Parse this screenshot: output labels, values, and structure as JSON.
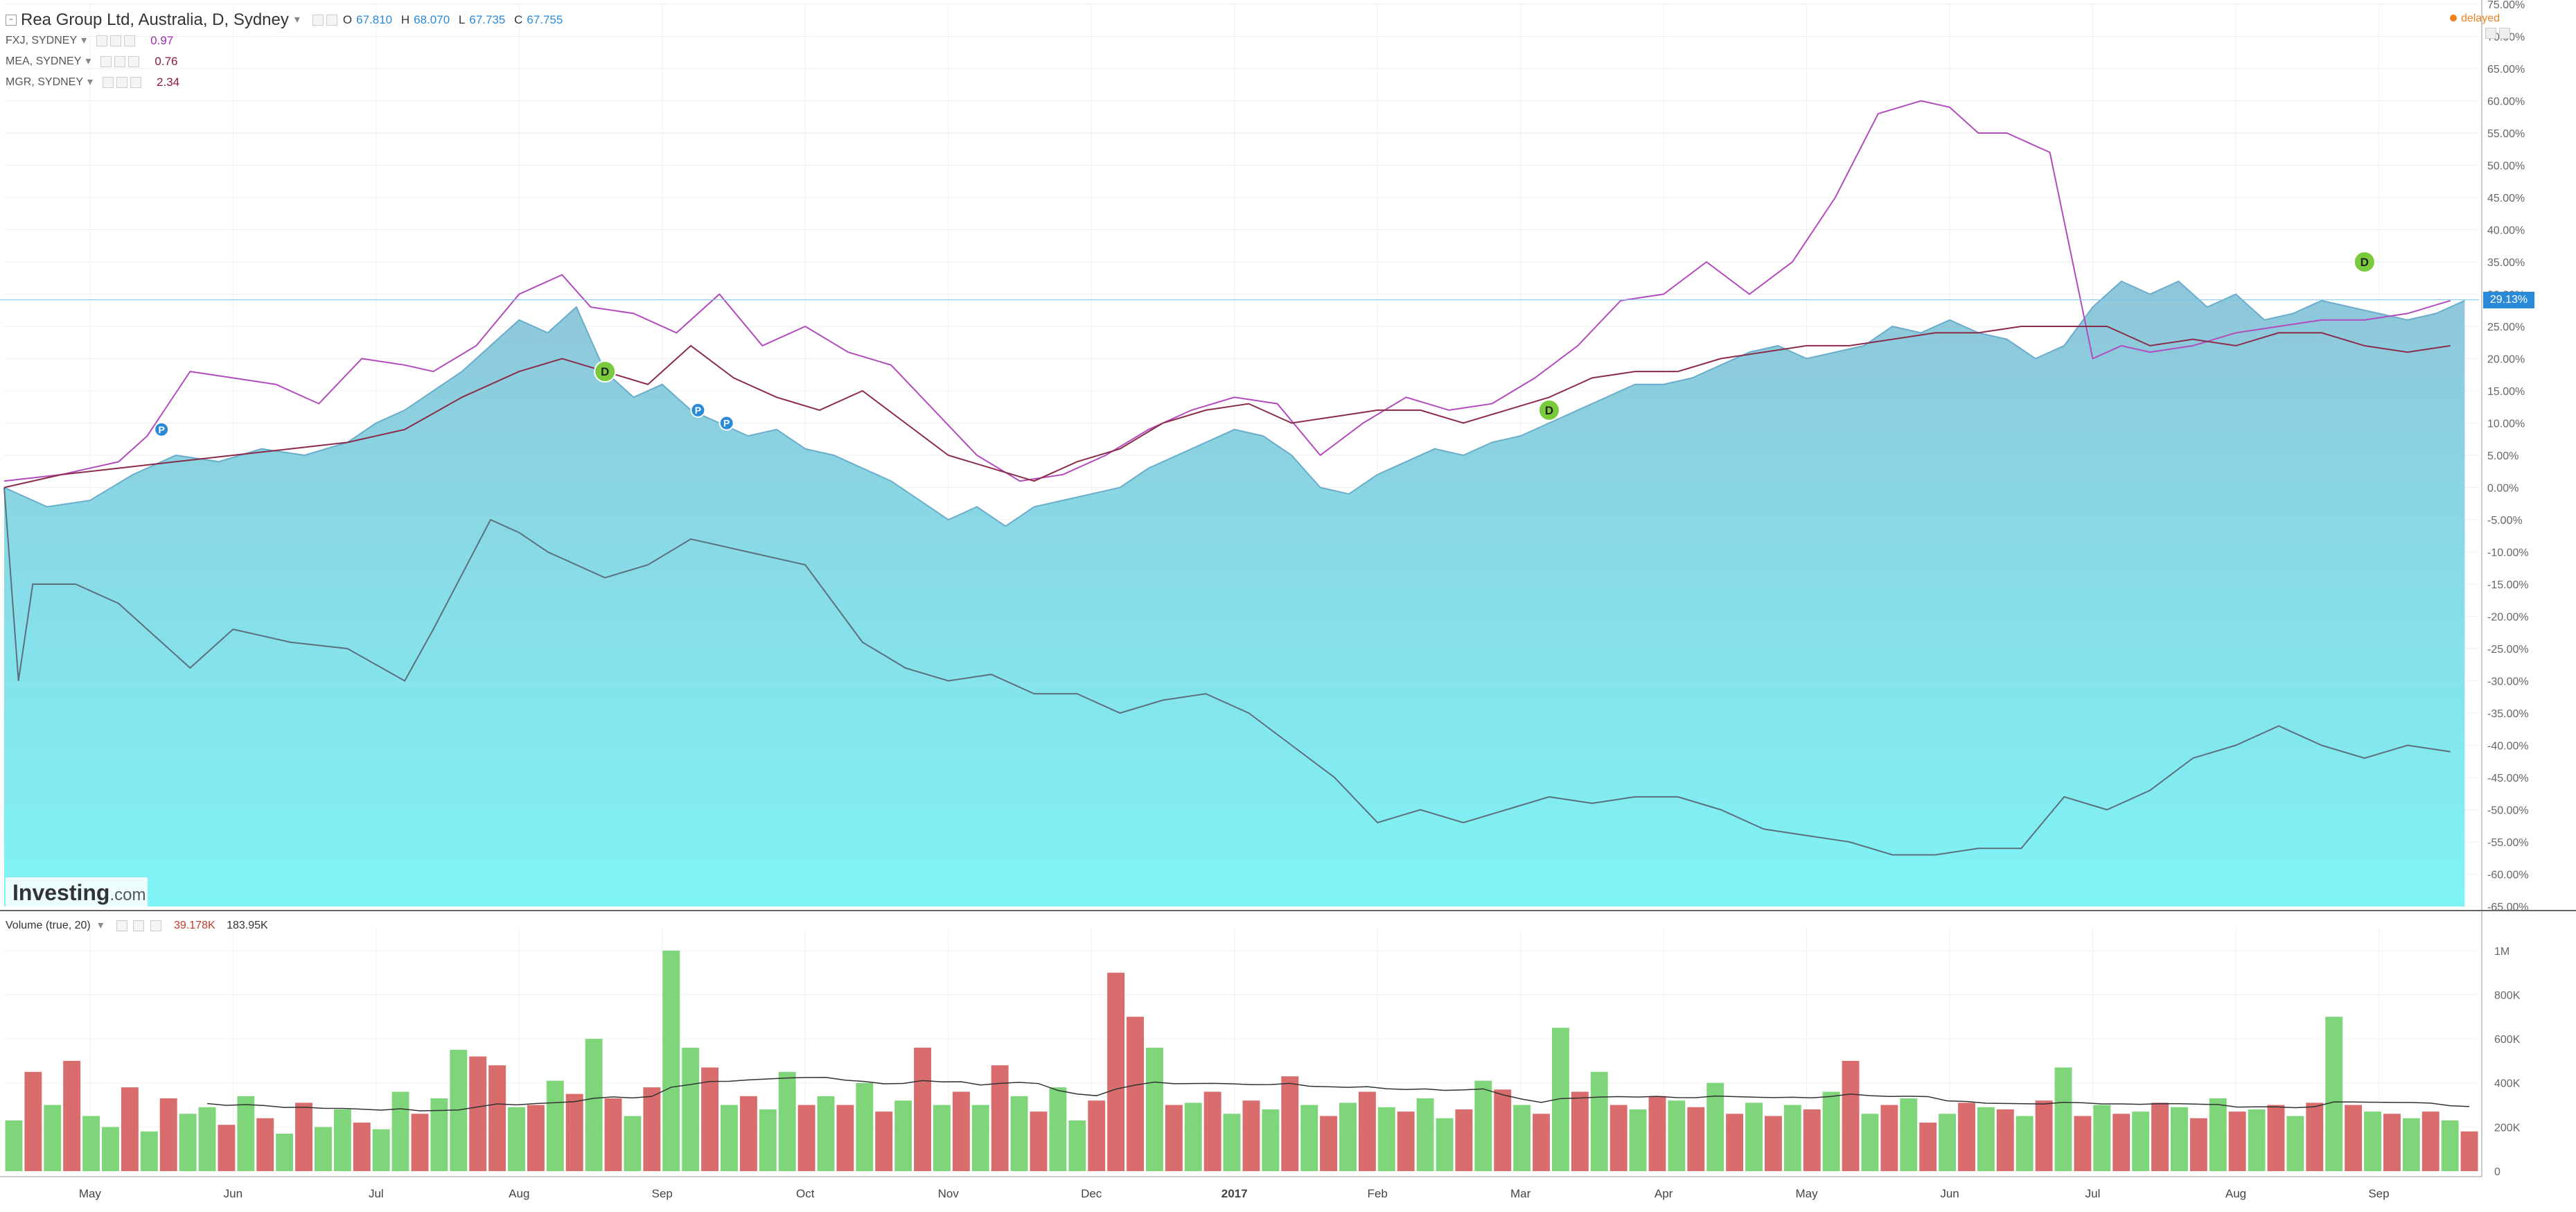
{
  "header": {
    "title": "Rea Group Ltd, Australia, D, Sydney",
    "ohlc": [
      {
        "key": "O",
        "value": "67.810"
      },
      {
        "key": "H",
        "value": "68.070"
      },
      {
        "key": "L",
        "value": "67.735"
      },
      {
        "key": "C",
        "value": "67.755"
      }
    ],
    "status": "delayed",
    "status_color": "#f08020"
  },
  "comparisons": [
    {
      "label": "FXJ, SYDNEY",
      "value": "0.97",
      "color": "#9b2fae"
    },
    {
      "label": "MEA, SYDNEY",
      "value": "0.76",
      "color": "#8b1a3a"
    },
    {
      "label": "MGR, SYDNEY",
      "value": "2.34",
      "color": "#8b1a3a"
    }
  ],
  "watermark": {
    "brand": "Investing",
    "suffix": ".com"
  },
  "volume_legend": {
    "label": "Volume (true, 20)",
    "value1": "39.178K",
    "value2": "183.95K"
  },
  "current_tag": "29.13%",
  "colors": {
    "area_top": "#8fc6d9",
    "area_bottom": "#7ff4f6",
    "area_line": "#6aaccc",
    "fxj": "#b24bbb",
    "mea": "#8b2b4a",
    "mgr": "#5c6f7d",
    "vol_up": "#7fd67a",
    "vol_down": "#d96c6c",
    "ma": "#333333",
    "event_p": "#2a8ad8",
    "event_d": "#7acb3c",
    "tag": "#2a8ad8"
  },
  "chart_data": [
    {
      "type": "area",
      "title": "Rea Group Ltd, Australia, D, Sydney",
      "y_unit": "%",
      "ylim": [
        -65,
        75
      ],
      "y_ticks": [
        "75.00%",
        "70.00%",
        "65.00%",
        "60.00%",
        "55.00%",
        "50.00%",
        "45.00%",
        "40.00%",
        "35.00%",
        "30.00%",
        "25.00%",
        "20.00%",
        "15.00%",
        "10.00%",
        "5.00%",
        "0.00%",
        "-5.00%",
        "-10.00%",
        "-15.00%",
        "-20.00%",
        "-25.00%",
        "-30.00%",
        "-35.00%",
        "-40.00%",
        "-45.00%",
        "-50.00%",
        "-55.00%",
        "-60.00%",
        "-65.00%"
      ],
      "x_ticks": [
        "May",
        "Jun",
        "Jul",
        "Aug",
        "Sep",
        "Oct",
        "Nov",
        "Dec",
        "2017",
        "Feb",
        "Mar",
        "Apr",
        "May",
        "Jun",
        "Jul",
        "Aug",
        "Sep"
      ],
      "x_tick_months": [
        1,
        2,
        3,
        4,
        5,
        6,
        7,
        8,
        9,
        10,
        11,
        12,
        13,
        14,
        15,
        16,
        17
      ],
      "xlim": [
        0,
        17.3
      ],
      "grid": true,
      "series": [
        {
          "name": "Rea Group Ltd",
          "kind": "area",
          "x": [
            0,
            0.3,
            0.6,
            0.9,
            1.2,
            1.5,
            1.8,
            2.1,
            2.4,
            2.6,
            2.8,
            3.0,
            3.2,
            3.4,
            3.6,
            3.8,
            4.0,
            4.2,
            4.4,
            4.6,
            4.8,
            5.0,
            5.2,
            5.4,
            5.6,
            5.8,
            6.0,
            6.2,
            6.4,
            6.6,
            6.8,
            7.0,
            7.2,
            7.4,
            7.6,
            7.8,
            8.0,
            8.2,
            8.4,
            8.6,
            8.8,
            9.0,
            9.2,
            9.4,
            9.6,
            9.8,
            10.0,
            10.2,
            10.4,
            10.6,
            10.8,
            11.0,
            11.2,
            11.4,
            11.6,
            11.8,
            12.0,
            12.2,
            12.4,
            12.6,
            12.8,
            13.0,
            13.2,
            13.4,
            13.6,
            13.8,
            14.0,
            14.2,
            14.4,
            14.6,
            14.8,
            15.0,
            15.2,
            15.4,
            15.6,
            15.8,
            16.0,
            16.2,
            16.4,
            16.6,
            16.8,
            17.0,
            17.2
          ],
          "y": [
            0,
            -3,
            -2,
            2,
            5,
            4,
            6,
            5,
            7,
            10,
            12,
            15,
            18,
            22,
            26,
            24,
            28,
            18,
            14,
            16,
            12,
            10,
            8,
            9,
            6,
            5,
            3,
            1,
            -2,
            -5,
            -3,
            -6,
            -3,
            -2,
            -1,
            0,
            3,
            5,
            7,
            9,
            8,
            5,
            0,
            -1,
            2,
            4,
            6,
            5,
            7,
            8,
            10,
            12,
            14,
            16,
            16,
            17,
            19,
            21,
            22,
            20,
            21,
            22,
            25,
            24,
            26,
            24,
            23,
            20,
            22,
            28,
            32,
            30,
            32,
            28,
            30,
            26,
            27,
            29,
            28,
            27,
            26,
            27,
            29
          ]
        },
        {
          "name": "FXJ",
          "kind": "line",
          "x": [
            0,
            0.4,
            0.8,
            1.0,
            1.3,
            1.6,
            1.9,
            2.2,
            2.5,
            2.8,
            3.0,
            3.3,
            3.6,
            3.9,
            4.1,
            4.4,
            4.7,
            5.0,
            5.3,
            5.6,
            5.9,
            6.2,
            6.5,
            6.8,
            7.1,
            7.4,
            7.7,
            8.0,
            8.3,
            8.6,
            8.9,
            9.2,
            9.5,
            9.8,
            10.1,
            10.4,
            10.7,
            11.0,
            11.3,
            11.6,
            11.9,
            12.2,
            12.5,
            12.8,
            13.1,
            13.4,
            13.6,
            13.8,
            14.0,
            14.3,
            14.6,
            14.8,
            15.0,
            15.3,
            15.6,
            15.9,
            16.2,
            16.5,
            16.8,
            17.1
          ],
          "y": [
            1,
            2,
            4,
            8,
            18,
            17,
            16,
            13,
            20,
            19,
            18,
            22,
            30,
            33,
            28,
            27,
            24,
            30,
            22,
            25,
            21,
            19,
            12,
            5,
            1,
            2,
            5,
            9,
            12,
            14,
            13,
            5,
            10,
            14,
            12,
            13,
            17,
            22,
            29,
            30,
            35,
            30,
            35,
            45,
            58,
            60,
            59,
            55,
            55,
            52,
            20,
            22,
            21,
            22,
            24,
            25,
            26,
            26,
            27,
            29
          ]
        },
        {
          "name": "MEA",
          "kind": "line",
          "x": [
            0,
            0.4,
            0.8,
            1.2,
            1.6,
            2.0,
            2.4,
            2.8,
            3.2,
            3.6,
            3.9,
            4.2,
            4.5,
            4.8,
            5.1,
            5.4,
            5.7,
            6.0,
            6.3,
            6.6,
            6.9,
            7.2,
            7.5,
            7.8,
            8.1,
            8.4,
            8.7,
            9.0,
            9.3,
            9.6,
            9.9,
            10.2,
            10.5,
            10.8,
            11.1,
            11.4,
            11.7,
            12.0,
            12.3,
            12.6,
            12.9,
            13.2,
            13.5,
            13.8,
            14.1,
            14.4,
            14.7,
            15.0,
            15.3,
            15.6,
            15.9,
            16.2,
            16.5,
            16.8,
            17.1
          ],
          "y": [
            0,
            2,
            3,
            4,
            5,
            6,
            7,
            9,
            14,
            18,
            20,
            18,
            16,
            22,
            17,
            14,
            12,
            15,
            10,
            5,
            3,
            1,
            4,
            6,
            10,
            12,
            13,
            10,
            11,
            12,
            12,
            10,
            12,
            14,
            17,
            18,
            18,
            20,
            21,
            22,
            22,
            23,
            24,
            24,
            25,
            25,
            25,
            22,
            23,
            22,
            24,
            24,
            22,
            21,
            22
          ]
        },
        {
          "name": "MGR",
          "kind": "line",
          "x": [
            0,
            0.1,
            0.2,
            0.5,
            0.8,
            1.0,
            1.3,
            1.6,
            2.0,
            2.4,
            2.8,
            3.0,
            3.4,
            3.6,
            3.8,
            4.2,
            4.5,
            4.8,
            5.2,
            5.6,
            6.0,
            6.3,
            6.6,
            6.9,
            7.2,
            7.5,
            7.8,
            8.1,
            8.4,
            8.7,
            9.0,
            9.3,
            9.6,
            9.9,
            10.2,
            10.5,
            10.8,
            11.1,
            11.4,
            11.7,
            12.0,
            12.3,
            12.6,
            12.9,
            13.2,
            13.5,
            13.8,
            14.1,
            14.4,
            14.7,
            15.0,
            15.3,
            15.6,
            15.9,
            16.2,
            16.5,
            16.8,
            17.1
          ],
          "y": [
            0,
            -30,
            -15,
            -15,
            -18,
            -22,
            -28,
            -22,
            -24,
            -25,
            -30,
            -22,
            -5,
            -7,
            -10,
            -14,
            -12,
            -8,
            -10,
            -12,
            -24,
            -28,
            -30,
            -29,
            -32,
            -32,
            -35,
            -33,
            -32,
            -35,
            -40,
            -45,
            -52,
            -50,
            -52,
            -50,
            -48,
            -49,
            -48,
            -48,
            -50,
            -53,
            -54,
            -55,
            -57,
            -57,
            -56,
            -56,
            -48,
            -50,
            -47,
            -42,
            -40,
            -37,
            -40,
            -42,
            -40,
            -41
          ]
        }
      ]
    },
    {
      "type": "bar",
      "title": "Volume (true, 20)",
      "y_ticks": [
        "0",
        "200K",
        "400K",
        "600K",
        "800K",
        "1M"
      ],
      "ylim": [
        0,
        1100000
      ],
      "series": [
        {
          "name": "Volume",
          "values": [
            230000,
            450000,
            300000,
            500000,
            250000,
            200000,
            380000,
            180000,
            330000,
            260000,
            290000,
            210000,
            340000,
            240000,
            170000,
            310000,
            200000,
            280000,
            220000,
            190000,
            360000,
            260000,
            330000,
            550000,
            520000,
            480000,
            290000,
            300000,
            410000,
            350000,
            600000,
            330000,
            250000,
            380000,
            1000000,
            560000,
            470000,
            300000,
            340000,
            280000,
            450000,
            300000,
            340000,
            300000,
            400000,
            270000,
            320000,
            560000,
            300000,
            360000,
            300000,
            480000,
            340000,
            270000,
            380000,
            230000,
            320000,
            900000,
            700000,
            560000,
            300000,
            310000,
            360000,
            260000,
            320000,
            280000,
            430000,
            300000,
            250000,
            310000,
            360000,
            290000,
            270000,
            330000,
            240000,
            280000,
            410000,
            370000,
            300000,
            260000,
            650000,
            360000,
            450000,
            300000,
            280000,
            340000,
            320000,
            290000,
            400000,
            260000,
            310000,
            250000,
            300000,
            280000,
            360000,
            500000,
            260000,
            300000,
            330000,
            220000,
            260000,
            310000,
            290000,
            280000,
            250000,
            320000,
            470000,
            250000,
            300000,
            260000,
            270000,
            310000,
            290000,
            240000,
            330000,
            270000,
            280000,
            300000,
            250000,
            310000,
            700000,
            300000,
            270000,
            260000,
            240000,
            270000,
            230000,
            180000
          ],
          "up": [
            true,
            false,
            true,
            false,
            true,
            true,
            false,
            true,
            false,
            true,
            true,
            false,
            true,
            false,
            true,
            false,
            true,
            true,
            false,
            true,
            true,
            false,
            true,
            true,
            false,
            false,
            true,
            false,
            true,
            false,
            true,
            false,
            true,
            false,
            true,
            true,
            false,
            true,
            false,
            true,
            true,
            false,
            true,
            false,
            true,
            false,
            true,
            false,
            true,
            false,
            true,
            false,
            true,
            false,
            true,
            true,
            false,
            false,
            false,
            true,
            false,
            true,
            false,
            true,
            false,
            true,
            false,
            true,
            false,
            true,
            false,
            true,
            false,
            true,
            true,
            false,
            true,
            false,
            true,
            false,
            true,
            false,
            true,
            false,
            true,
            false,
            true,
            false,
            true,
            false,
            true,
            false,
            true,
            false,
            true,
            false,
            true,
            false,
            true,
            false,
            true,
            false,
            true,
            false,
            true,
            false,
            true,
            false,
            true,
            false,
            true,
            false,
            true,
            false,
            true,
            false,
            true,
            false,
            true,
            false,
            true,
            false,
            true,
            false,
            true,
            false,
            true,
            false
          ]
        },
        {
          "name": "MA 20",
          "kind": "line",
          "values_note": "rolling"
        }
      ]
    }
  ],
  "events": [
    {
      "label": "P",
      "kind": "p",
      "x": 1.1,
      "y": 9
    },
    {
      "label": "D",
      "kind": "d",
      "x": 4.2,
      "y": 18
    },
    {
      "label": "P",
      "kind": "p",
      "x": 4.85,
      "y": 12
    },
    {
      "label": "P",
      "kind": "p",
      "x": 5.05,
      "y": 10
    },
    {
      "label": "D",
      "kind": "d",
      "x": 10.8,
      "y": 12
    },
    {
      "label": "D",
      "kind": "d",
      "x": 16.5,
      "y": 35
    }
  ],
  "current_line_value": 29.13
}
